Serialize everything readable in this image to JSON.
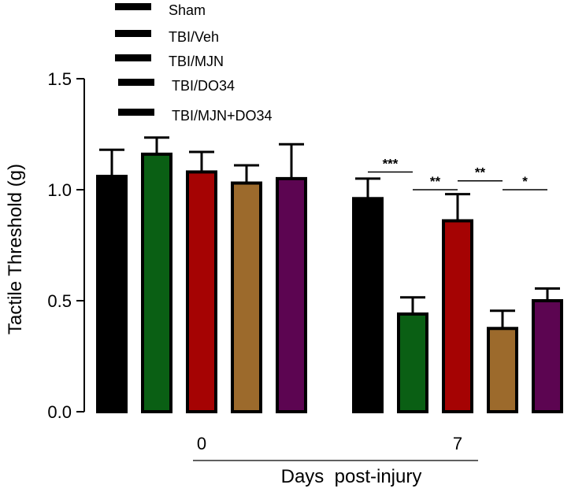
{
  "chart_data": {
    "type": "bar",
    "ylabel": "Tactile Threshold (g)",
    "xlabel": "Days  post-injury",
    "ylim": [
      0,
      1.5
    ],
    "yticks": [
      "0.0",
      "0.5",
      "1.0",
      "1.5"
    ],
    "categories": [
      "0",
      "7"
    ],
    "legend_position": "top-left",
    "series": [
      {
        "name": "Sham",
        "color": "#000000",
        "values": [
          1.06,
          0.96
        ],
        "errors": [
          0.12,
          0.09
        ]
      },
      {
        "name": "TBI/Veh",
        "color": "#0a5f14",
        "values": [
          1.16,
          0.44
        ],
        "errors": [
          0.075,
          0.075
        ]
      },
      {
        "name": "TBI/MJN",
        "color": "#a50303",
        "values": [
          1.08,
          0.86
        ],
        "errors": [
          0.09,
          0.12
        ]
      },
      {
        "name": "TBI/DO34",
        "color": "#9c6a2c",
        "values": [
          1.03,
          0.375
        ],
        "errors": [
          0.08,
          0.08
        ]
      },
      {
        "name": "TBI/MJN+DO34",
        "color": "#5c0551",
        "values": [
          1.05,
          0.5
        ],
        "errors": [
          0.155,
          0.055
        ]
      }
    ],
    "significance": [
      {
        "label": "***",
        "category": "7",
        "from": "Sham",
        "to": "TBI/Veh",
        "y": 1.08
      },
      {
        "label": "**",
        "category": "7",
        "from": "TBI/Veh",
        "to": "TBI/MJN",
        "y": 1.0
      },
      {
        "label": "**",
        "category": "7",
        "from": "TBI/MJN",
        "to": "TBI/DO34",
        "y": 1.04
      },
      {
        "label": "*",
        "category": "7",
        "from": "TBI/DO34",
        "to": "TBI/MJN+DO34",
        "y": 1.0
      }
    ]
  }
}
